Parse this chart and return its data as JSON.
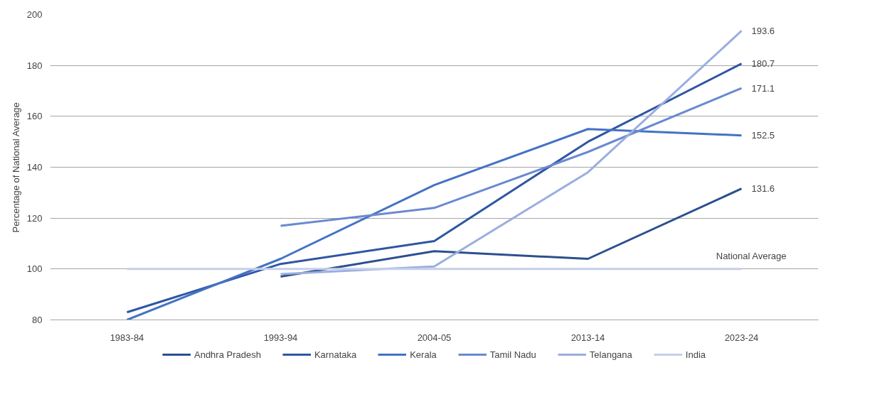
{
  "chart_data": {
    "type": "line",
    "ylabel": "Percentage of National Average",
    "categories": [
      "1983-84",
      "1993-94",
      "2004-05",
      "2013-14",
      "2023-24"
    ],
    "series": [
      {
        "name": "Andhra Pradesh",
        "color": "#2c4f8f",
        "values": [
          null,
          97,
          107,
          104,
          131.6
        ],
        "value_labels": [
          null,
          null,
          null,
          null,
          "131.6"
        ]
      },
      {
        "name": "Karnataka",
        "color": "#2f56a3",
        "values": [
          83,
          102,
          111,
          150,
          180.7
        ],
        "value_labels": [
          null,
          null,
          null,
          null,
          "180.7"
        ]
      },
      {
        "name": "Kerala",
        "color": "#4472c4",
        "values": [
          80,
          104,
          133,
          155,
          152.5
        ],
        "value_labels": [
          null,
          null,
          null,
          null,
          "152.5"
        ]
      },
      {
        "name": "Tamil Nadu",
        "color": "#6a8ad0",
        "values": [
          null,
          117,
          124,
          146,
          171.1
        ],
        "value_labels": [
          null,
          null,
          null,
          null,
          "171.1"
        ]
      },
      {
        "name": "Telangana",
        "color": "#9aaedf",
        "values": [
          null,
          98,
          101,
          138,
          193.6
        ],
        "value_labels": [
          null,
          null,
          null,
          null,
          "193.6"
        ]
      },
      {
        "name": "India",
        "color": "#c5cfe9",
        "values": [
          100,
          100,
          100,
          100,
          100
        ]
      }
    ],
    "annotations": [
      {
        "text": "National Average",
        "x": "2023-24",
        "y": 100
      }
    ],
    "ylim": [
      80,
      200
    ],
    "yticks": [
      80,
      100,
      120,
      140,
      160,
      180,
      200
    ],
    "grid": "y",
    "legend": "bottom",
    "line_style": "solid",
    "marker": "none"
  }
}
